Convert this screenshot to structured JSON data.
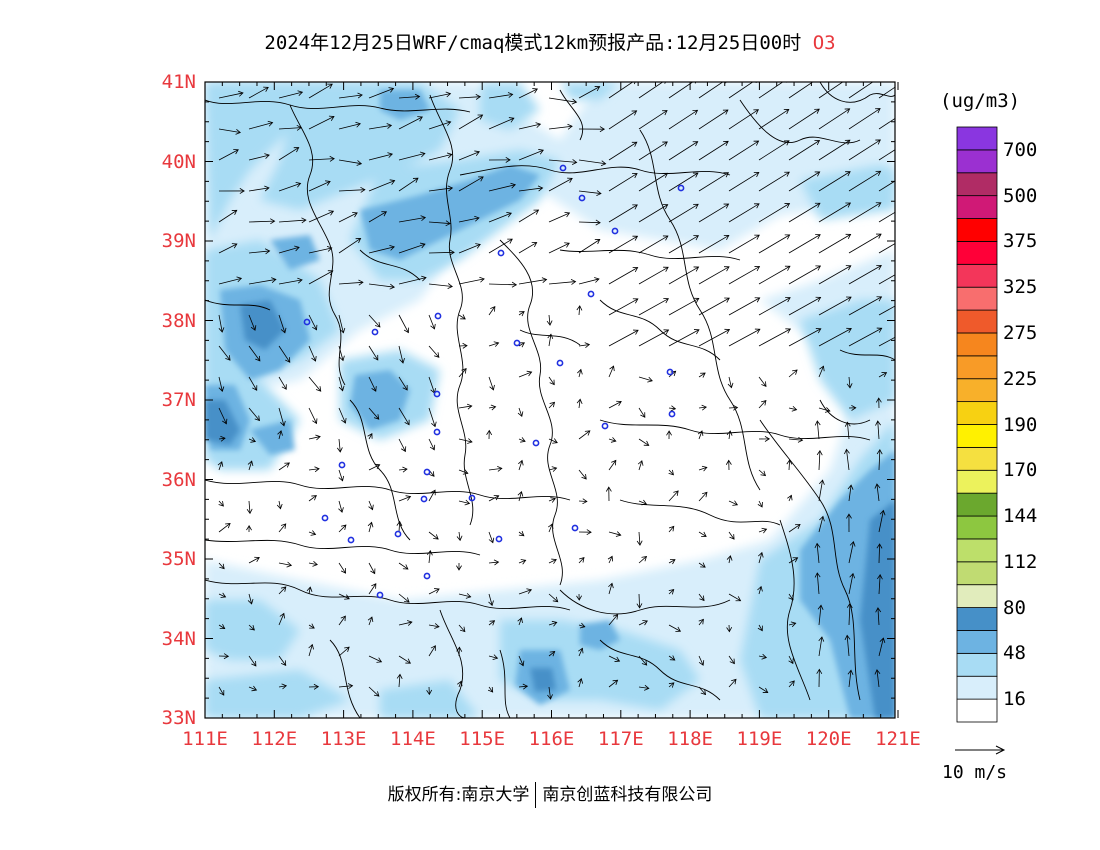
{
  "title": {
    "text": "2024年12月25日WRF/cmaq模式12km预报产品:12月25日00时",
    "pollutant": "O3"
  },
  "axes": {
    "lat_labels": [
      "41N",
      "40N",
      "39N",
      "38N",
      "37N",
      "36N",
      "35N",
      "34N",
      "33N"
    ],
    "lon_labels": [
      "111E",
      "112E",
      "113E",
      "114E",
      "115E",
      "116E",
      "117E",
      "118E",
      "119E",
      "120E",
      "121E"
    ]
  },
  "colorbar": {
    "unit": "(ug/m3)",
    "levels": [
      {
        "color": "#ffffff",
        "label": "16"
      },
      {
        "color": "#d8eefb",
        "label": ""
      },
      {
        "color": "#a8dcf4",
        "label": "48"
      },
      {
        "color": "#6db3e2",
        "label": ""
      },
      {
        "color": "#4690c8",
        "label": "80"
      },
      {
        "color": "#e1ecbc",
        "label": ""
      },
      {
        "color": "#c0db72",
        "label": "112"
      },
      {
        "color": "#bddf6a",
        "label": ""
      },
      {
        "color": "#8dc740",
        "label": "144"
      },
      {
        "color": "#6ba82e",
        "label": ""
      },
      {
        "color": "#ecf25c",
        "label": "170"
      },
      {
        "color": "#f5e040",
        "label": ""
      },
      {
        "color": "#fff100",
        "label": "190"
      },
      {
        "color": "#f7d112",
        "label": ""
      },
      {
        "color": "#f8b02a",
        "label": "225"
      },
      {
        "color": "#f89b27",
        "label": ""
      },
      {
        "color": "#f6861e",
        "label": "275"
      },
      {
        "color": "#ef5a2b",
        "label": ""
      },
      {
        "color": "#f86e6e",
        "label": "325"
      },
      {
        "color": "#f3365a",
        "label": ""
      },
      {
        "color": "#ff0038",
        "label": "375"
      },
      {
        "color": "#ff0000",
        "label": ""
      },
      {
        "color": "#d01976",
        "label": "500"
      },
      {
        "color": "#b02c65",
        "label": ""
      },
      {
        "color": "#9b30d1",
        "label": "700"
      },
      {
        "color": "#8a36e0",
        "label": ""
      }
    ]
  },
  "vector_key": {
    "label": "10 m/s"
  },
  "footer": {
    "left": "版权所有:南京大学",
    "right": "南京创蓝科技有限公司"
  },
  "colors": {
    "label_red": "#e8383d",
    "city_marker": "#2030e0"
  }
}
